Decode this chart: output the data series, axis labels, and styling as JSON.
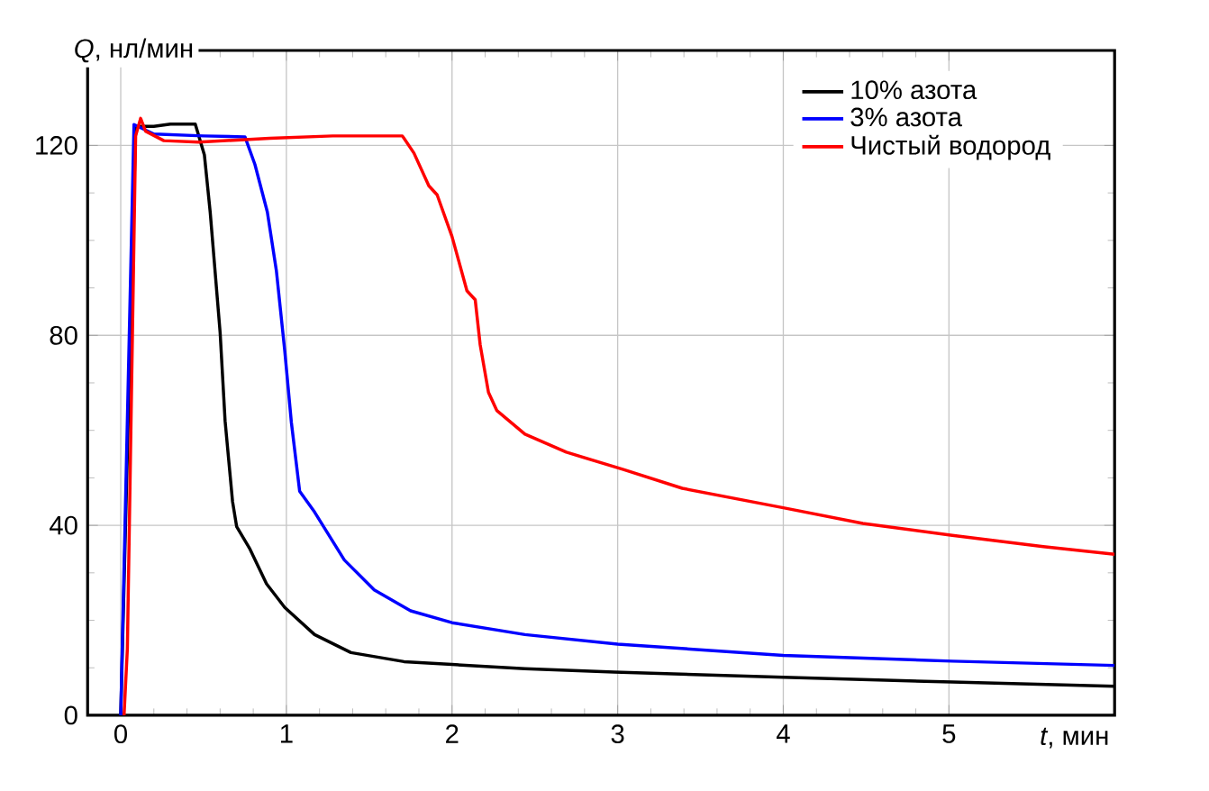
{
  "chart_data": {
    "type": "line",
    "xlabel": "*t*, мин",
    "ylabel": "*Q*, нл/мин",
    "xlim": [
      -0.2,
      6.0
    ],
    "ylim": [
      0,
      140
    ],
    "xticks": [
      0,
      1,
      2,
      3,
      4,
      5
    ],
    "yticks": [
      0,
      40,
      80,
      120
    ],
    "grid": true,
    "legend": "top right",
    "line_style": "solid",
    "series": [
      {
        "name": "10% азота",
        "color": "#000000",
        "x": [
          0.0,
          0.09,
          0.2,
          0.3,
          0.45,
          0.505,
          0.54,
          0.6,
          0.63,
          0.675,
          0.7,
          0.78,
          0.88,
          0.99,
          1.17,
          1.39,
          1.71,
          2.0,
          2.44,
          2.98,
          4.0,
          5.02,
          6.0
        ],
        "values": [
          0,
          124,
          124,
          124.5,
          124.5,
          118,
          106,
          80.6,
          62,
          45,
          39.7,
          35,
          27.7,
          22.7,
          17,
          13.2,
          11.3,
          10.7,
          9.8,
          9.1,
          8.0,
          7.0,
          6.1
        ]
      },
      {
        "name": "3% азота",
        "color": "#0000ff",
        "x": [
          0.0,
          0.08,
          0.2,
          0.5,
          0.75,
          0.81,
          0.885,
          0.94,
          0.99,
          1.03,
          1.08,
          1.17,
          1.35,
          1.53,
          1.75,
          2.0,
          2.44,
          3.0,
          4.0,
          5.02,
          6.0
        ],
        "values": [
          0,
          124.4,
          122.4,
          122,
          121.8,
          116,
          106,
          93.5,
          76.8,
          61.7,
          47.2,
          42.8,
          32.7,
          26.4,
          22,
          19.5,
          17,
          15,
          12.6,
          11.4,
          10.5
        ]
      },
      {
        "name": "Чистый водород",
        "color": "#ff0000",
        "x": [
          0.02,
          0.04,
          0.09,
          0.12,
          0.15,
          0.26,
          0.47,
          0.9,
          1.28,
          1.7,
          1.71,
          1.77,
          1.86,
          1.91,
          2.0,
          2.09,
          2.14,
          2.17,
          2.22,
          2.27,
          2.44,
          2.69,
          3.03,
          3.39,
          4.0,
          4.48,
          5.02,
          5.57,
          6.0
        ],
        "values": [
          0,
          14,
          122,
          125.7,
          123,
          121,
          120.7,
          121.5,
          122,
          122,
          121.5,
          118.4,
          111.5,
          109.6,
          100.8,
          89.4,
          87.5,
          78,
          68,
          64.2,
          59.2,
          55.4,
          51.8,
          47.8,
          43.7,
          40.4,
          37.9,
          35.5,
          33.9
        ]
      }
    ]
  }
}
